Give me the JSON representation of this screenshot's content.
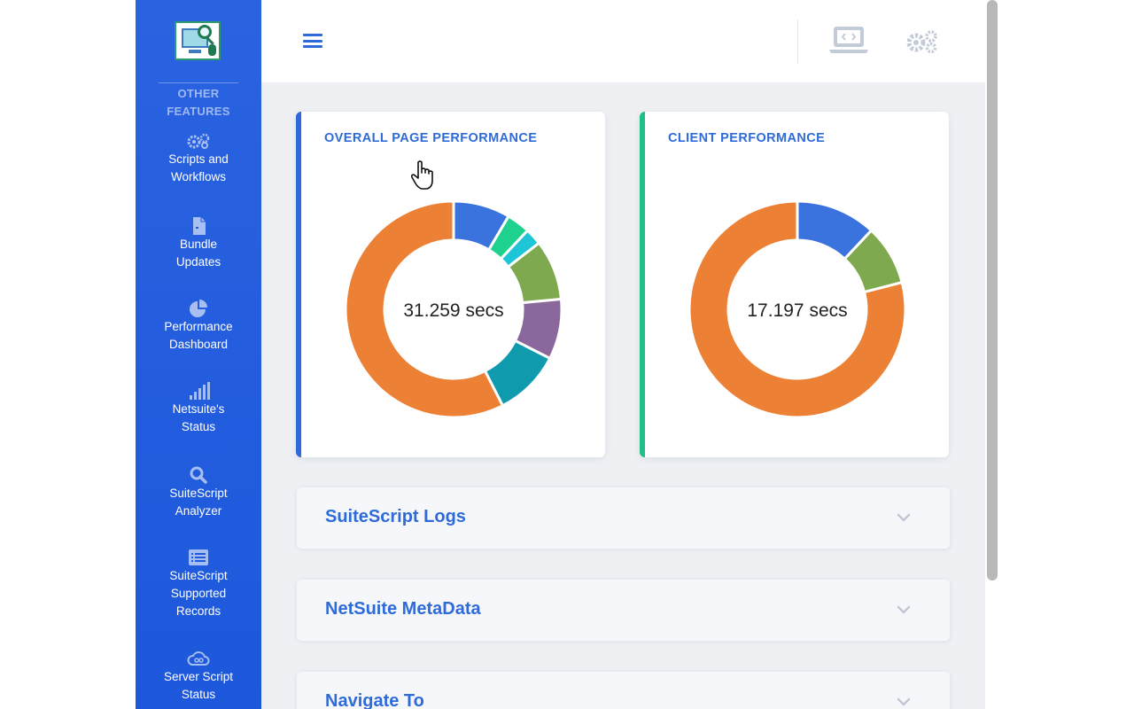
{
  "sidebar": {
    "heading": "OTHER\nFEATURES",
    "items": [
      {
        "label": "Scripts and\nWorkflows",
        "icon": "gears-icon"
      },
      {
        "label": "Bundle\nUpdates",
        "icon": "file-icon"
      },
      {
        "label": "Performance\nDashboard",
        "icon": "pie-chart-icon"
      },
      {
        "label": "Netsuite's\nStatus",
        "icon": "signal-bars-icon"
      },
      {
        "label": "SuiteScript\nAnalyzer",
        "icon": "search-icon"
      },
      {
        "label": "SuiteScript\nSupported\nRecords",
        "icon": "list-icon"
      },
      {
        "label": "Server Script\nStatus",
        "icon": "cloud-icon"
      }
    ]
  },
  "cards": {
    "overall": {
      "title": "OVERALL PAGE PERFORMANCE",
      "center_label": "31.259 secs"
    },
    "client": {
      "title": "CLIENT PERFORMANCE",
      "center_label": "17.197 secs"
    }
  },
  "chart_data": [
    {
      "type": "pie",
      "donut": true,
      "title": "OVERALL PAGE PERFORMANCE",
      "center_text": "31.259 secs",
      "slices": [
        {
          "value": 8.5,
          "color": "#3b73de"
        },
        {
          "value": 3.5,
          "color": "#1fd18e"
        },
        {
          "value": 2.5,
          "color": "#1ec5d6"
        },
        {
          "value": 9,
          "color": "#7fa94f"
        },
        {
          "value": 9,
          "color": "#8a689c"
        },
        {
          "value": 10,
          "color": "#0f9aae"
        },
        {
          "value": 57.5,
          "color": "#ec8034"
        }
      ]
    },
    {
      "type": "pie",
      "donut": true,
      "title": "CLIENT PERFORMANCE",
      "center_text": "17.197 secs",
      "slices": [
        {
          "value": 12,
          "color": "#3b73de"
        },
        {
          "value": 9,
          "color": "#7fa94f"
        },
        {
          "value": 79,
          "color": "#ec8034"
        }
      ]
    }
  ],
  "accordions": [
    {
      "title": "SuiteScript Logs"
    },
    {
      "title": "NetSuite MetaData"
    },
    {
      "title": "Navigate To"
    }
  ],
  "colors": {
    "brand_blue": "#2f6bd8",
    "sidebar_blue": "#1d58dc",
    "client_accent": "#1fbf86"
  }
}
